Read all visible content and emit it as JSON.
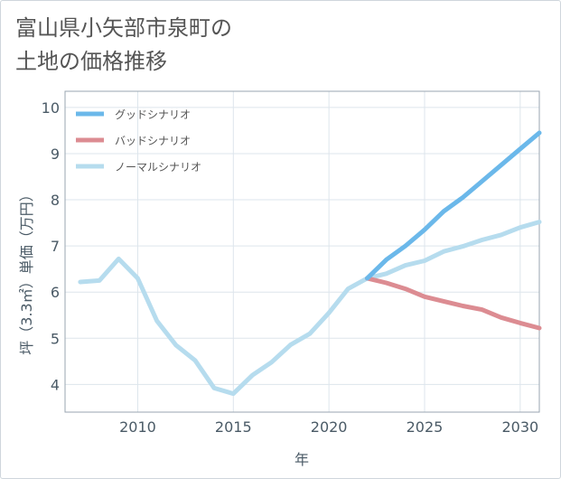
{
  "title_lines": [
    "富山県小矢部市泉町の",
    "土地の価格推移"
  ],
  "chart_data": {
    "type": "line",
    "xlabel": "年",
    "ylabel": "坪（3.3㎡）単価（万円）",
    "xlim": [
      2006.2,
      2031
    ],
    "ylim": [
      3.4,
      10.35
    ],
    "xticks": [
      2010,
      2015,
      2020,
      2025,
      2030
    ],
    "yticks": [
      4,
      5,
      6,
      7,
      8,
      9,
      10
    ],
    "grid": true,
    "legend_position": "top-left",
    "series": [
      {
        "name": "グッドシナリオ",
        "color": "#6bb8ea",
        "x": [
          2022,
          2023,
          2024,
          2025,
          2026,
          2027,
          2028,
          2029,
          2030,
          2031
        ],
        "y": [
          6.3,
          6.7,
          7.0,
          7.35,
          7.75,
          8.05,
          8.4,
          8.75,
          9.1,
          9.45
        ]
      },
      {
        "name": "バッドシナリオ",
        "color": "#dc8c92",
        "x": [
          2022,
          2023,
          2024,
          2025,
          2026,
          2027,
          2028,
          2029,
          2030,
          2031
        ],
        "y": [
          6.3,
          6.2,
          6.07,
          5.9,
          5.8,
          5.7,
          5.62,
          5.45,
          5.33,
          5.22
        ]
      },
      {
        "name": "ノーマルシナリオ",
        "color": "#b6dcee",
        "x": [
          2007,
          2008,
          2009,
          2010,
          2011,
          2012,
          2013,
          2014,
          2015,
          2016,
          2017,
          2018,
          2019,
          2020,
          2021,
          2022,
          2023,
          2024,
          2025,
          2026,
          2027,
          2028,
          2029,
          2030,
          2031
        ],
        "y": [
          6.22,
          6.25,
          6.72,
          6.3,
          5.38,
          4.85,
          4.52,
          3.92,
          3.8,
          4.2,
          4.48,
          4.86,
          5.1,
          5.55,
          6.07,
          6.3,
          6.4,
          6.58,
          6.68,
          6.88,
          6.99,
          7.13,
          7.24,
          7.4,
          7.52
        ]
      }
    ]
  }
}
